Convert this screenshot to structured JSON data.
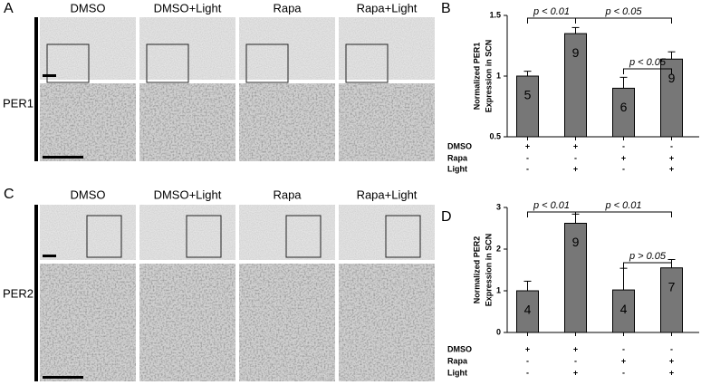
{
  "panel_labels": [
    "A",
    "B",
    "C",
    "D"
  ],
  "image_panels": [
    {
      "columns": [
        "DMSO",
        "DMSO+Light",
        "Rapa",
        "Rapa+Light"
      ],
      "row_label": "PER1"
    },
    {
      "columns": [
        "DMSO",
        "DMSO+Light",
        "Rapa",
        "Rapa+Light"
      ],
      "row_label": "PER2"
    }
  ],
  "chart_data": [
    {
      "type": "bar",
      "ylabel": [
        "Normalized PER1",
        "Expression in SCN"
      ],
      "color": "#777777",
      "values": [
        1.0,
        1.35,
        0.9,
        1.14
      ],
      "errors": [
        0.04,
        0.05,
        0.09,
        0.06
      ],
      "bar_labels": [
        5,
        9,
        6,
        9
      ],
      "ylim": [
        0.5,
        1.5
      ],
      "yticks": [
        0.5,
        1,
        1.5
      ],
      "annotations": [
        "p < 0.01",
        "p < 0.05",
        "p < 0.05"
      ],
      "treatments": [
        {
          "label": "DMSO",
          "marks": [
            "+",
            "+",
            "-",
            "-"
          ]
        },
        {
          "label": "Rapa",
          "marks": [
            "-",
            "-",
            "+",
            "+"
          ]
        },
        {
          "label": "Light",
          "marks": [
            "-",
            "+",
            "-",
            "+"
          ]
        }
      ]
    },
    {
      "type": "bar",
      "ylabel": [
        "Normalized PER2",
        "Expression in SCN"
      ],
      "color": "#777777",
      "values": [
        1.0,
        2.62,
        1.02,
        1.55
      ],
      "errors": [
        0.23,
        0.22,
        0.52,
        0.2
      ],
      "bar_labels": [
        4,
        9,
        4,
        7
      ],
      "ylim": [
        0,
        3
      ],
      "yticks": [
        0,
        1,
        2,
        3
      ],
      "annotations": [
        "p < 0.01",
        "p < 0.01",
        "p > 0.05"
      ],
      "treatments": [
        {
          "label": "DMSO",
          "marks": [
            "+",
            "+",
            "-",
            "-"
          ]
        },
        {
          "label": "Rapa",
          "marks": [
            "-",
            "-",
            "+",
            "+"
          ]
        },
        {
          "label": "Light",
          "marks": [
            "-",
            "+",
            "-",
            "+"
          ]
        }
      ]
    }
  ]
}
